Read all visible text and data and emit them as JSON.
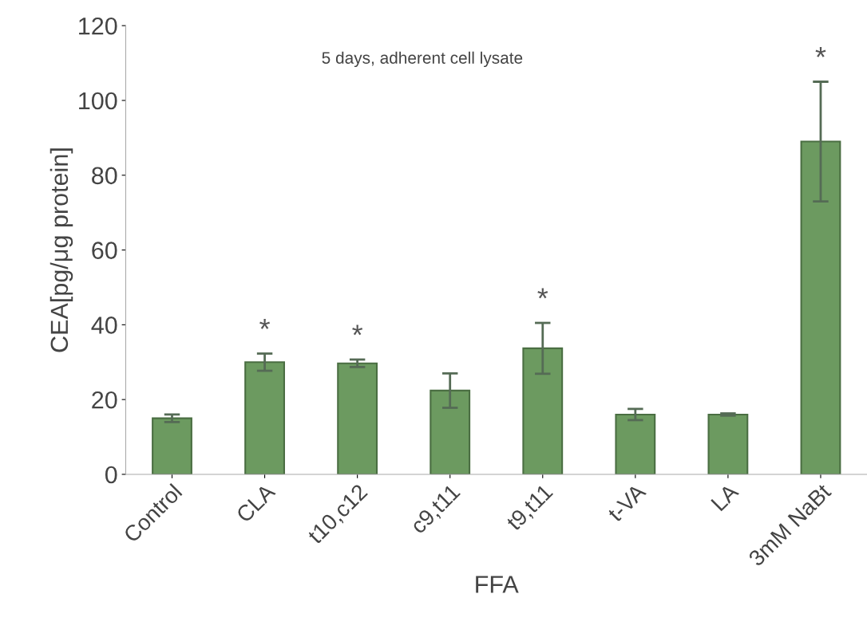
{
  "chart_data": {
    "type": "bar",
    "annotations": [
      "5 days, adherent cell lysate"
    ],
    "value_labels": [
      null,
      "*",
      "*",
      null,
      "*",
      null,
      null,
      "*"
    ],
    "xlabel": "FFA",
    "ylabel": "CEA[pg/μg protein]",
    "categories": [
      "Control",
      "CLA",
      "t10,c12",
      "c9,t11",
      "t9,t11",
      "t-VA",
      "LA",
      "3mM NaBt"
    ],
    "values": [
      15,
      30,
      29.7,
      22.4,
      33.7,
      16,
      16,
      89
    ],
    "errors": [
      1,
      2.3,
      1,
      4.6,
      6.8,
      1.5,
      0.3,
      16
    ],
    "color": "#6c9a60",
    "ylim": [
      0,
      120
    ],
    "yticks": [
      0,
      20,
      40,
      60,
      80,
      100,
      120
    ],
    "grid": false
  }
}
